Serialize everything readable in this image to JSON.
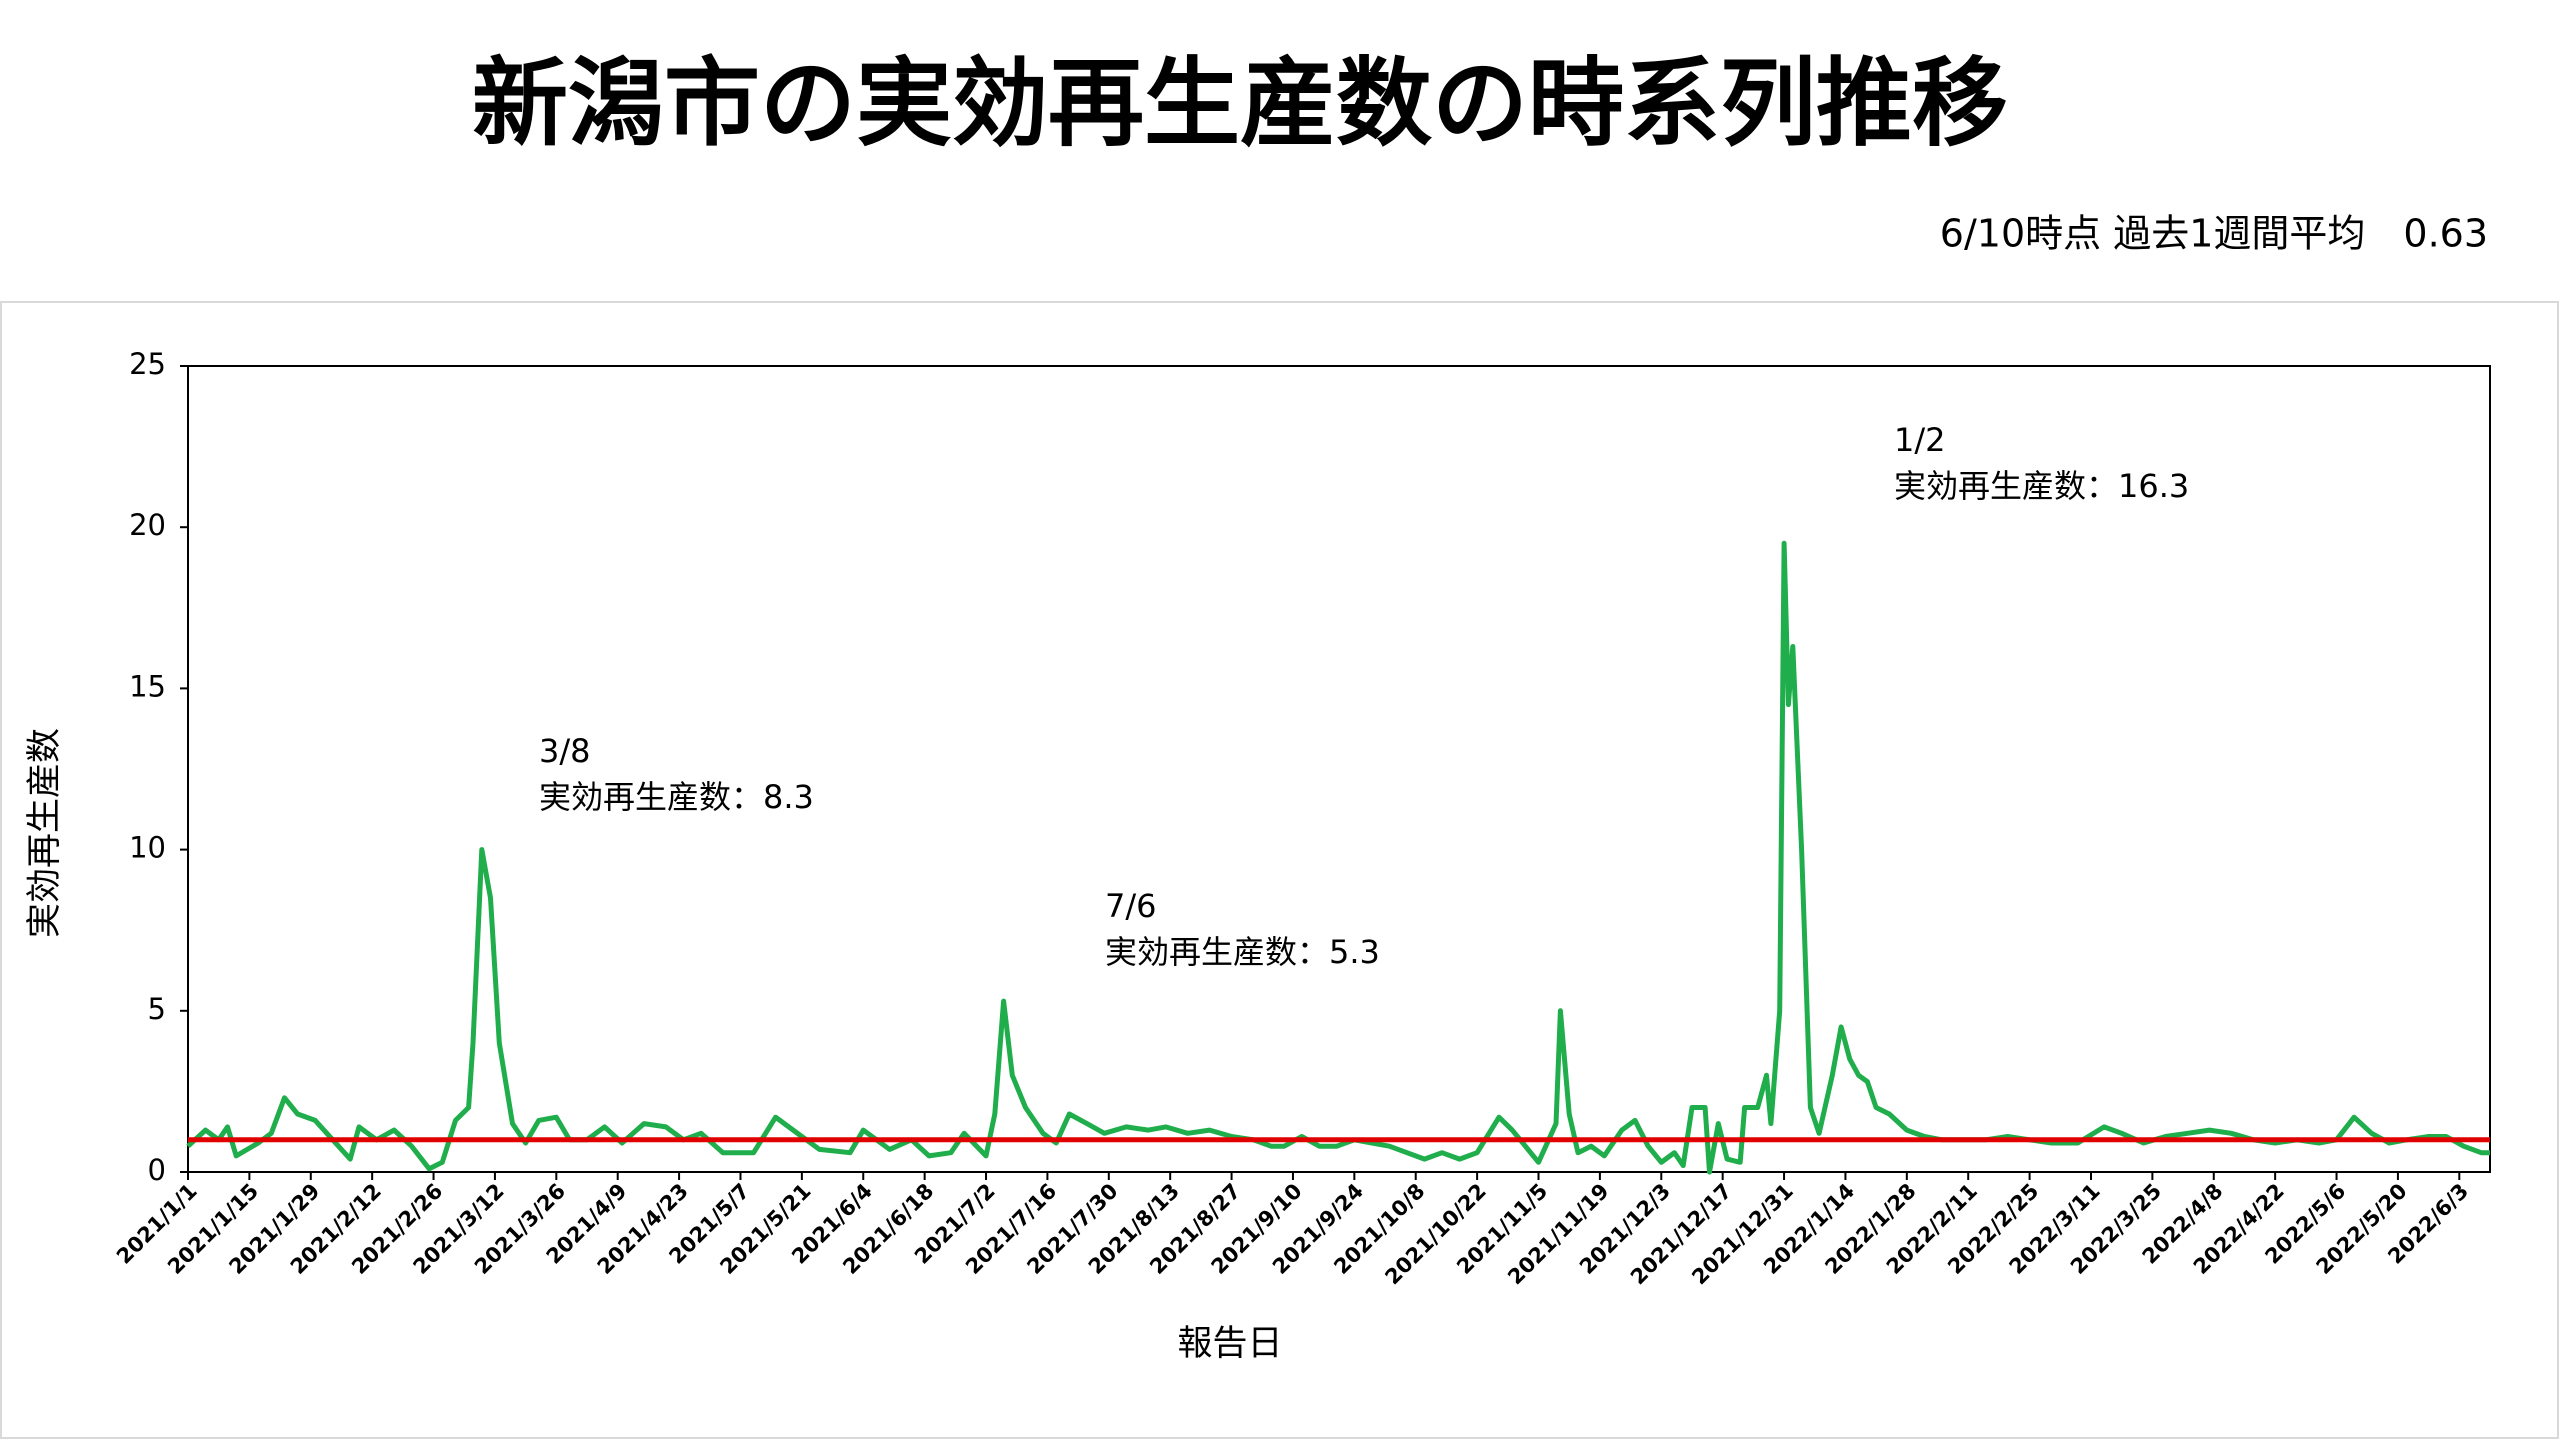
{
  "chart_data": {
    "type": "line",
    "title": "新潟市の実効再生産数の時系列推移",
    "subtitle": "6/10時点 過去1週間平均　0.63",
    "x_label": "報告日",
    "y_label": "実効再生産数",
    "ylim": [
      0,
      25
    ],
    "yticks": [
      0,
      5,
      10,
      15,
      20,
      25
    ],
    "xlim": [
      "2021/1/1",
      "2022/6/10"
    ],
    "xticks": [
      "2021/1/1",
      "2021/1/15",
      "2021/1/29",
      "2021/2/12",
      "2021/2/26",
      "2021/3/12",
      "2021/3/26",
      "2021/4/9",
      "2021/4/23",
      "2021/5/7",
      "2021/5/21",
      "2021/6/4",
      "2021/6/18",
      "2021/7/2",
      "2021/7/16",
      "2021/7/30",
      "2021/8/13",
      "2021/8/27",
      "2021/9/10",
      "2021/9/24",
      "2021/10/8",
      "2021/10/22",
      "2021/11/5",
      "2021/11/19",
      "2021/12/3",
      "2021/12/17",
      "2021/12/31",
      "2022/1/14",
      "2022/1/28",
      "2022/2/11",
      "2022/2/25",
      "2022/3/11",
      "2022/3/25",
      "2022/4/8",
      "2022/4/22",
      "2022/5/6",
      "2022/5/20",
      "2022/6/3"
    ],
    "color": "#1fae4b",
    "x": [
      "2021/1/1",
      "2021/1/5",
      "2021/1/8",
      "2021/1/10",
      "2021/1/12",
      "2021/1/17",
      "2021/1/20",
      "2021/1/23",
      "2021/1/26",
      "2021/1/30",
      "2021/2/3",
      "2021/2/7",
      "2021/2/9",
      "2021/2/13",
      "2021/2/17",
      "2021/2/21",
      "2021/2/25",
      "2021/2/28",
      "2021/3/3",
      "2021/3/6",
      "2021/3/7",
      "2021/3/9",
      "2021/3/11",
      "2021/3/13",
      "2021/3/16",
      "2021/3/19",
      "2021/3/22",
      "2021/3/26",
      "2021/3/29",
      "2021/4/2",
      "2021/4/6",
      "2021/4/10",
      "2021/4/15",
      "2021/4/20",
      "2021/4/24",
      "2021/4/28",
      "2021/5/3",
      "2021/5/10",
      "2021/5/15",
      "2021/5/20",
      "2021/5/25",
      "2021/6/1",
      "2021/6/4",
      "2021/6/10",
      "2021/6/15",
      "2021/6/19",
      "2021/6/24",
      "2021/6/27",
      "2021/7/2",
      "2021/7/4",
      "2021/7/6",
      "2021/7/8",
      "2021/7/11",
      "2021/7/15",
      "2021/7/18",
      "2021/7/21",
      "2021/7/25",
      "2021/7/29",
      "2021/8/3",
      "2021/8/8",
      "2021/8/12",
      "2021/8/17",
      "2021/8/22",
      "2021/8/27",
      "2021/9/1",
      "2021/9/5",
      "2021/9/8",
      "2021/9/12",
      "2021/9/16",
      "2021/9/20",
      "2021/9/24",
      "2021/9/28",
      "2021/10/2",
      "2021/10/6",
      "2021/10/10",
      "2021/10/14",
      "2021/10/18",
      "2021/10/22",
      "2021/10/27",
      "2021/10/30",
      "2021/11/2",
      "2021/11/5",
      "2021/11/9",
      "2021/11/10",
      "2021/11/12",
      "2021/11/14",
      "2021/11/17",
      "2021/11/20",
      "2021/11/24",
      "2021/11/27",
      "2021/11/30",
      "2021/12/3",
      "2021/12/6",
      "2021/12/8",
      "2021/12/10",
      "2021/12/13",
      "2021/12/14",
      "2021/12/16",
      "2021/12/18",
      "2021/12/21",
      "2021/12/22",
      "2021/12/25",
      "2021/12/27",
      "2021/12/28",
      "2021/12/30",
      "2021/12/31",
      "2022/1/1",
      "2022/1/2",
      "2022/1/4",
      "2022/1/6",
      "2022/1/8",
      "2022/1/11",
      "2022/1/13",
      "2022/1/15",
      "2022/1/17",
      "2022/1/19",
      "2022/1/21",
      "2022/1/24",
      "2022/1/28",
      "2022/2/1",
      "2022/2/5",
      "2022/2/10",
      "2022/2/15",
      "2022/2/20",
      "2022/2/25",
      "2022/3/2",
      "2022/3/8",
      "2022/3/14",
      "2022/3/18",
      "2022/3/23",
      "2022/3/28",
      "2022/4/2",
      "2022/4/7",
      "2022/4/12",
      "2022/4/17",
      "2022/4/22",
      "2022/4/27",
      "2022/5/2",
      "2022/5/6",
      "2022/5/10",
      "2022/5/14",
      "2022/5/18",
      "2022/5/22",
      "2022/5/27",
      "2022/5/31",
      "2022/6/4",
      "2022/6/8",
      "2022/6/10"
    ],
    "values": [
      0.8,
      1.3,
      1.0,
      1.4,
      0.5,
      0.9,
      1.2,
      2.3,
      1.8,
      1.6,
      1.0,
      0.4,
      1.4,
      1.0,
      1.3,
      0.8,
      0.1,
      0.3,
      1.6,
      2.0,
      4.0,
      10.0,
      8.5,
      4.0,
      1.5,
      0.9,
      1.6,
      1.7,
      1.0,
      1.0,
      1.4,
      0.9,
      1.5,
      1.4,
      1.0,
      1.2,
      0.6,
      0.6,
      1.7,
      1.2,
      0.7,
      0.6,
      1.3,
      0.7,
      1.0,
      0.5,
      0.6,
      1.2,
      0.5,
      1.8,
      5.3,
      3.0,
      2.0,
      1.2,
      0.9,
      1.8,
      1.5,
      1.2,
      1.4,
      1.3,
      1.4,
      1.2,
      1.3,
      1.1,
      1.0,
      0.8,
      0.8,
      1.1,
      0.8,
      0.8,
      1.0,
      0.9,
      0.8,
      0.6,
      0.4,
      0.6,
      0.4,
      0.6,
      1.7,
      1.3,
      0.8,
      0.3,
      1.5,
      5.0,
      1.8,
      0.6,
      0.8,
      0.5,
      1.3,
      1.6,
      0.8,
      0.3,
      0.6,
      0.2,
      2.0,
      2.0,
      0.0,
      1.5,
      0.4,
      0.3,
      2.0,
      2.0,
      3.0,
      1.5,
      5.0,
      19.5,
      14.5,
      16.3,
      10.0,
      2.0,
      1.2,
      3.0,
      4.5,
      3.5,
      3.0,
      2.8,
      2.0,
      1.8,
      1.3,
      1.1,
      1.0,
      1.0,
      1.0,
      1.1,
      1.0,
      0.9,
      0.9,
      1.4,
      1.2,
      0.9,
      1.1,
      1.2,
      1.3,
      1.2,
      1.0,
      0.9,
      1.0,
      0.9,
      1.0,
      1.7,
      1.2,
      0.9,
      1.0,
      1.1,
      1.1,
      0.8,
      0.6,
      0.6
    ],
    "reference_line": {
      "value": 1,
      "color": "#e00000"
    },
    "annotations": [
      {
        "date": "3/8",
        "text": "実効再生産数：8.3"
      },
      {
        "date": "7/6",
        "text": "実効再生産数：5.3"
      },
      {
        "date": "1/2",
        "text": "実効再生産数：16.3"
      }
    ]
  }
}
